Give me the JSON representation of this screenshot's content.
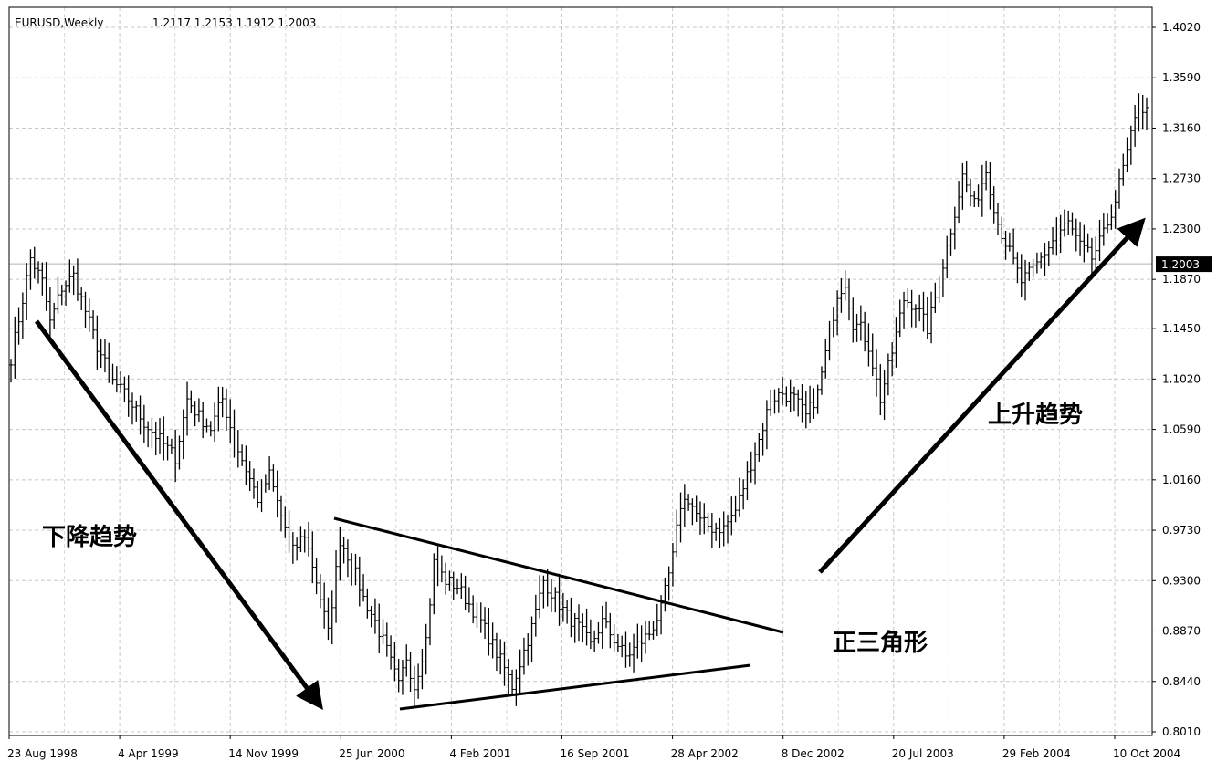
{
  "header": {
    "symbol": "EURUSD,Weekly",
    "ohlc": "1.2117 1.2153 1.1912 1.2003"
  },
  "chart_data": {
    "type": "ohlc-bar",
    "title": "EURUSD,Weekly",
    "last_price": 1.2003,
    "last_price_label": "1.2003",
    "ylim": [
      0.801,
      1.402
    ],
    "y_ticks": [
      "1.4020",
      "1.3590",
      "1.3160",
      "1.2730",
      "1.2300",
      "1.1870",
      "1.1450",
      "1.1020",
      "1.0590",
      "1.0160",
      "0.9730",
      "0.9300",
      "0.8870",
      "0.8440",
      "0.8010"
    ],
    "x_ticks": [
      "23 Aug 1998",
      "4 Apr 1999",
      "14 Nov 1999",
      "25 Jun 2000",
      "4 Feb 2001",
      "16 Sep 2001",
      "28 Apr 2002",
      "8 Dec 2002",
      "20 Jul 2003",
      "29 Feb 2004",
      "10 Oct 2004"
    ],
    "grid": true,
    "anchor_closes": [
      [
        0,
        1.12
      ],
      [
        3,
        1.17
      ],
      [
        5,
        1.205
      ],
      [
        8,
        1.185
      ],
      [
        10,
        1.15
      ],
      [
        13,
        1.18
      ],
      [
        16,
        1.19
      ],
      [
        19,
        1.16
      ],
      [
        22,
        1.13
      ],
      [
        26,
        1.1
      ],
      [
        30,
        1.085
      ],
      [
        34,
        1.065
      ],
      [
        38,
        1.05
      ],
      [
        42,
        1.035
      ],
      [
        45,
        1.085
      ],
      [
        48,
        1.07
      ],
      [
        51,
        1.06
      ],
      [
        54,
        1.085
      ],
      [
        57,
        1.05
      ],
      [
        60,
        1.025
      ],
      [
        63,
        1.0
      ],
      [
        66,
        1.02
      ],
      [
        69,
        0.985
      ],
      [
        72,
        0.955
      ],
      [
        75,
        0.97
      ],
      [
        78,
        0.93
      ],
      [
        81,
        0.885
      ],
      [
        84,
        0.965
      ],
      [
        87,
        0.945
      ],
      [
        90,
        0.915
      ],
      [
        93,
        0.895
      ],
      [
        96,
        0.87
      ],
      [
        99,
        0.84
      ],
      [
        101,
        0.865
      ],
      [
        103,
        0.84
      ],
      [
        106,
        0.88
      ],
      [
        108,
        0.945
      ],
      [
        111,
        0.93
      ],
      [
        114,
        0.925
      ],
      [
        117,
        0.91
      ],
      [
        120,
        0.895
      ],
      [
        123,
        0.875
      ],
      [
        126,
        0.855
      ],
      [
        128,
        0.84
      ],
      [
        130,
        0.86
      ],
      [
        133,
        0.89
      ],
      [
        136,
        0.93
      ],
      [
        139,
        0.915
      ],
      [
        142,
        0.9
      ],
      [
        145,
        0.89
      ],
      [
        148,
        0.875
      ],
      [
        151,
        0.895
      ],
      [
        154,
        0.88
      ],
      [
        157,
        0.865
      ],
      [
        160,
        0.875
      ],
      [
        163,
        0.885
      ],
      [
        166,
        0.905
      ],
      [
        169,
        0.95
      ],
      [
        171,
        0.995
      ],
      [
        173,
        1.0
      ],
      [
        176,
        0.98
      ],
      [
        179,
        0.975
      ],
      [
        182,
        0.975
      ],
      [
        185,
        0.99
      ],
      [
        188,
        1.02
      ],
      [
        191,
        1.05
      ],
      [
        194,
        1.085
      ],
      [
        197,
        1.09
      ],
      [
        200,
        1.085
      ],
      [
        203,
        1.07
      ],
      [
        206,
        1.09
      ],
      [
        209,
        1.14
      ],
      [
        211,
        1.175
      ],
      [
        213,
        1.185
      ],
      [
        215,
        1.15
      ],
      [
        217,
        1.145
      ],
      [
        219,
        1.13
      ],
      [
        222,
        1.085
      ],
      [
        225,
        1.125
      ],
      [
        228,
        1.17
      ],
      [
        231,
        1.165
      ],
      [
        234,
        1.145
      ],
      [
        237,
        1.185
      ],
      [
        240,
        1.23
      ],
      [
        243,
        1.275
      ],
      [
        246,
        1.25
      ],
      [
        249,
        1.28
      ],
      [
        252,
        1.235
      ],
      [
        255,
        1.21
      ],
      [
        258,
        1.185
      ],
      [
        261,
        1.195
      ],
      [
        264,
        1.21
      ],
      [
        267,
        1.225
      ],
      [
        270,
        1.235
      ],
      [
        273,
        1.215
      ],
      [
        276,
        1.205
      ],
      [
        279,
        1.225
      ],
      [
        282,
        1.255
      ],
      [
        285,
        1.295
      ],
      [
        288,
        1.335
      ],
      [
        290,
        1.33
      ]
    ]
  },
  "annotations": {
    "downtrend": "下降趋势",
    "uptrend": "上升趋势",
    "triangle": "正三角形"
  }
}
